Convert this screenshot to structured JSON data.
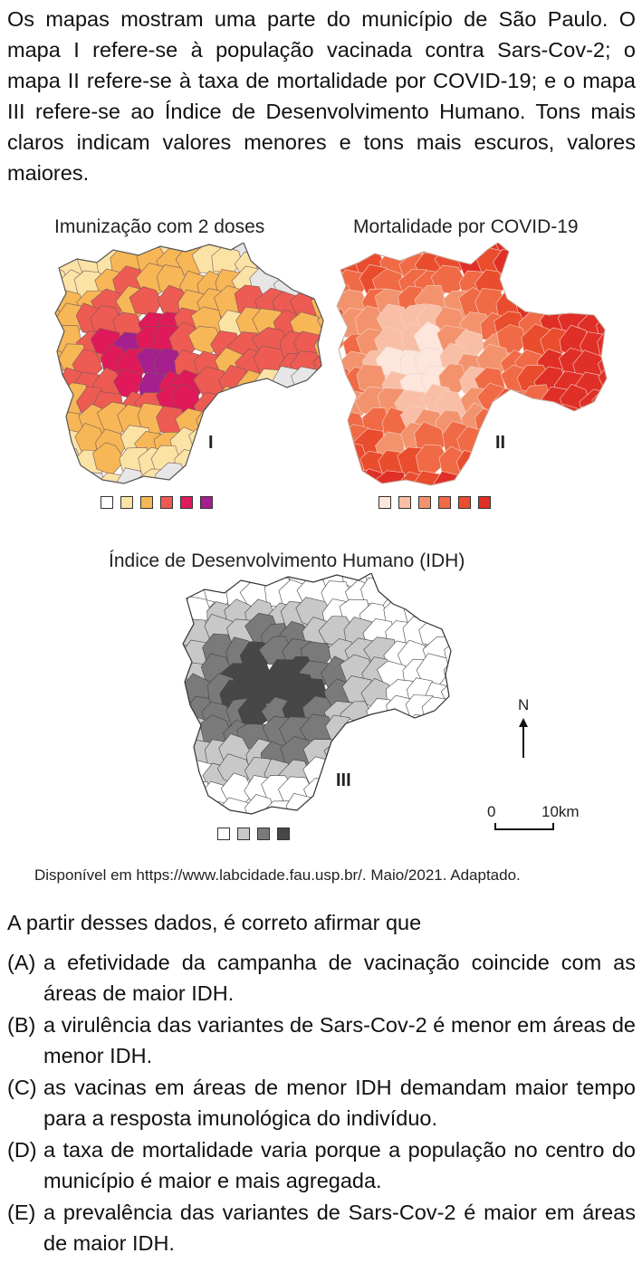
{
  "intro": "Os mapas mostram uma parte do município de São Paulo. O mapa I refere-se à população vacinada contra Sars-Cov-2; o mapa II refere-se à taxa de mortalidade por COVID-19; e o mapa III refere-se ao Índice de Desenvolvimento Humano. Tons mais claros indicam valores menores e tons mais escuros, valores maiores.",
  "maps": [
    {
      "title": "Imunização com 2 doses",
      "label": "I",
      "legend_colors": [
        "#ffffff",
        "#fbe3a6",
        "#f7b756",
        "#ee5b53",
        "#e0195a",
        "#a51f8e"
      ],
      "region_colors": [
        "#e6e6e6",
        "#fbe3a6",
        "#f7b756",
        "#ee5b53",
        "#e0195a",
        "#a51f8e"
      ]
    },
    {
      "title": "Mortalidade por COVID-19",
      "label": "II",
      "legend_colors": [
        "#fde6dc",
        "#f8bfa6",
        "#f3936d",
        "#ef6a45",
        "#e94d2e",
        "#e02f27"
      ],
      "region_colors": [
        "#fde6dc",
        "#f8bfa6",
        "#f3936d",
        "#ef6a45",
        "#e94d2e",
        "#e02f27"
      ]
    },
    {
      "title": "Índice de Desenvolvimento Humano (IDH)",
      "label": "III",
      "legend_colors": [
        "#ffffff",
        "#c8c8c8",
        "#7a7a7a",
        "#474747"
      ],
      "region_colors": [
        "#ffffff",
        "#c8c8c8",
        "#7a7a7a",
        "#474747"
      ]
    }
  ],
  "north_label": "N",
  "scale": {
    "start": "0",
    "end": "10km"
  },
  "source": "Disponível em https://www.labcidade.fau.usp.br/. Maio/2021. Adaptado.",
  "question": "A partir desses dados, é correto afirmar que",
  "options": [
    {
      "letter": "(A)",
      "text": "a efetividade da campanha de vacinação coincide com as áreas de maior IDH."
    },
    {
      "letter": "(B)",
      "text": "a virulência das variantes de Sars-Cov-2 é menor em áreas de menor IDH."
    },
    {
      "letter": "(C)",
      "text": "as vacinas em áreas de menor IDH demandam maior tempo para a resposta imunológica do indivíduo."
    },
    {
      "letter": "(D)",
      "text": "a taxa de mortalidade varia porque a população no centro do município é maior e mais agregada."
    },
    {
      "letter": "(E)",
      "text": "a prevalência das variantes de Sars-Cov-2 é maior em áreas de maior IDH."
    }
  ]
}
